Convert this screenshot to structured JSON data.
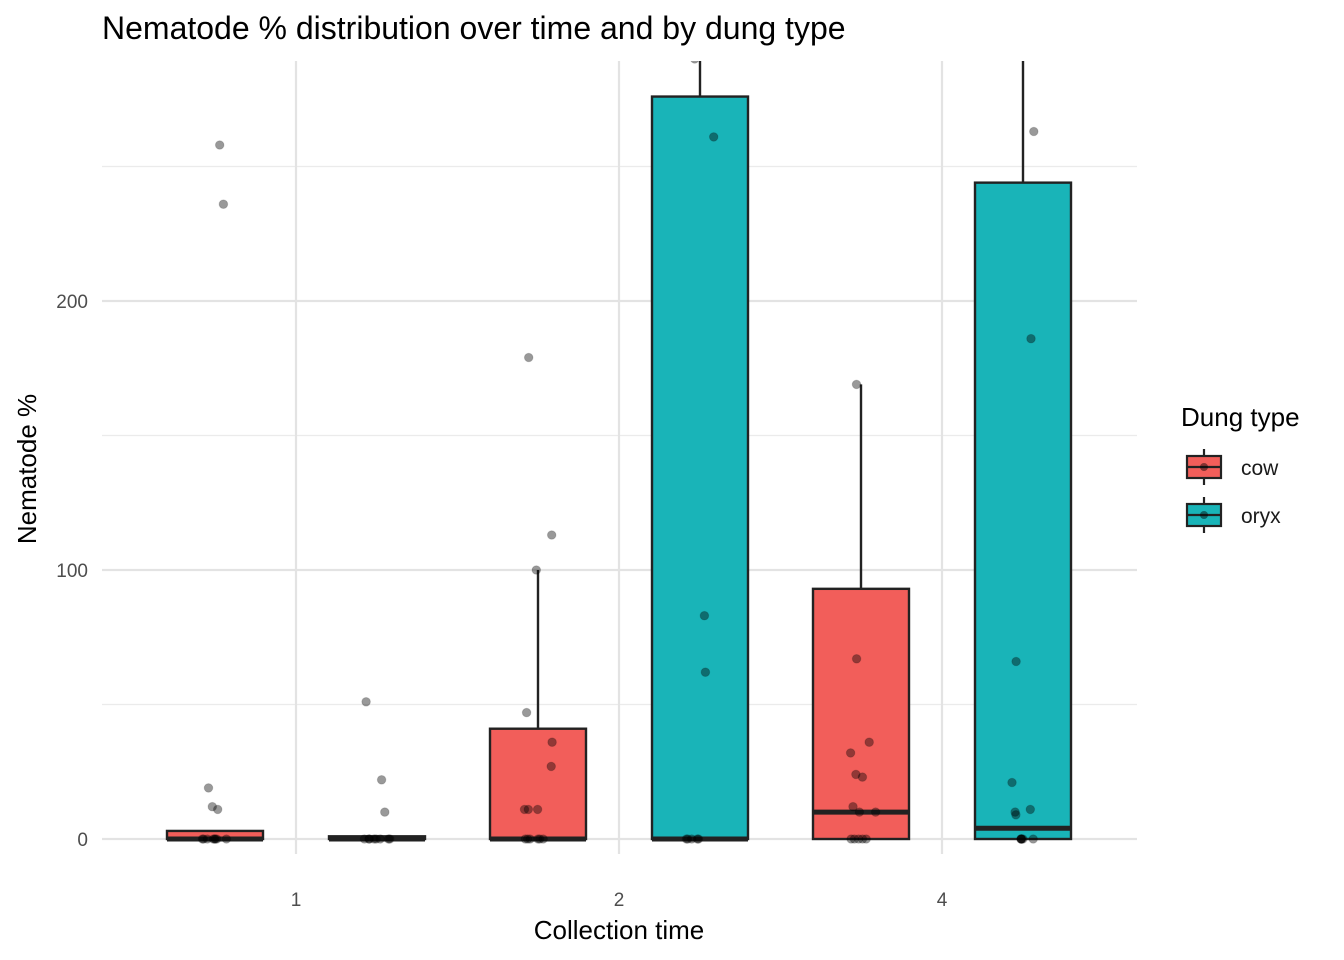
{
  "chart_data": {
    "type": "boxplot",
    "title": "Nematode % distribution over time and by dung type",
    "xlabel": "Collection time",
    "ylabel": "Nematode %",
    "categories": [
      "1",
      "2",
      "4"
    ],
    "y_ticks": [
      0,
      100,
      200
    ],
    "ylim": [
      -11,
      290
    ],
    "grid": true,
    "legend": {
      "title": "Dung type",
      "position": "right",
      "entries": [
        {
          "name": "cow",
          "color": "#F25E5A"
        },
        {
          "name": "oryx",
          "color": "#19B4B8"
        }
      ]
    },
    "series": [
      {
        "name": "cow",
        "color": "#F25E5A",
        "boxes": [
          {
            "category": "1",
            "q1": 0,
            "median": 0,
            "q3": 3,
            "whisker_low": 0,
            "whisker_high": 3,
            "points": [
              0,
              0,
              0,
              0,
              0,
              0,
              0,
              0,
              11,
              12,
              19,
              236,
              258
            ]
          },
          {
            "category": "2",
            "q1": 0,
            "median": 0,
            "q3": 41,
            "whisker_low": 0,
            "whisker_high": 100,
            "points": [
              0,
              0,
              0,
              0,
              0,
              0,
              11,
              11,
              11,
              27,
              36,
              47,
              100,
              113,
              179
            ]
          },
          {
            "category": "4",
            "q1": 0,
            "median": 10,
            "q3": 93,
            "whisker_low": 0,
            "whisker_high": 169,
            "points": [
              0,
              0,
              0,
              0,
              0,
              10,
              10,
              12,
              23,
              24,
              32,
              36,
              67,
              169
            ]
          }
        ]
      },
      {
        "name": "oryx",
        "color": "#19B4B8",
        "boxes": [
          {
            "category": "1",
            "q1": 0,
            "median": 0,
            "q3": 1,
            "whisker_low": 0,
            "whisker_high": 1,
            "points": [
              0,
              0,
              0,
              0,
              0,
              0,
              0,
              0,
              10,
              22,
              51
            ]
          },
          {
            "category": "2",
            "q1": 0,
            "median": 0,
            "q3": 276,
            "whisker_low": 0,
            "whisker_high": 290,
            "points": [
              0,
              0,
              0,
              0,
              0,
              62,
              83,
              261,
              290
            ]
          },
          {
            "category": "4",
            "q1": 0,
            "median": 4,
            "q3": 244,
            "whisker_low": 0,
            "whisker_high": 290,
            "points": [
              0,
              0,
              0,
              0,
              0,
              0,
              9,
              10,
              11,
              21,
              66,
              186,
              263
            ]
          }
        ]
      }
    ]
  }
}
